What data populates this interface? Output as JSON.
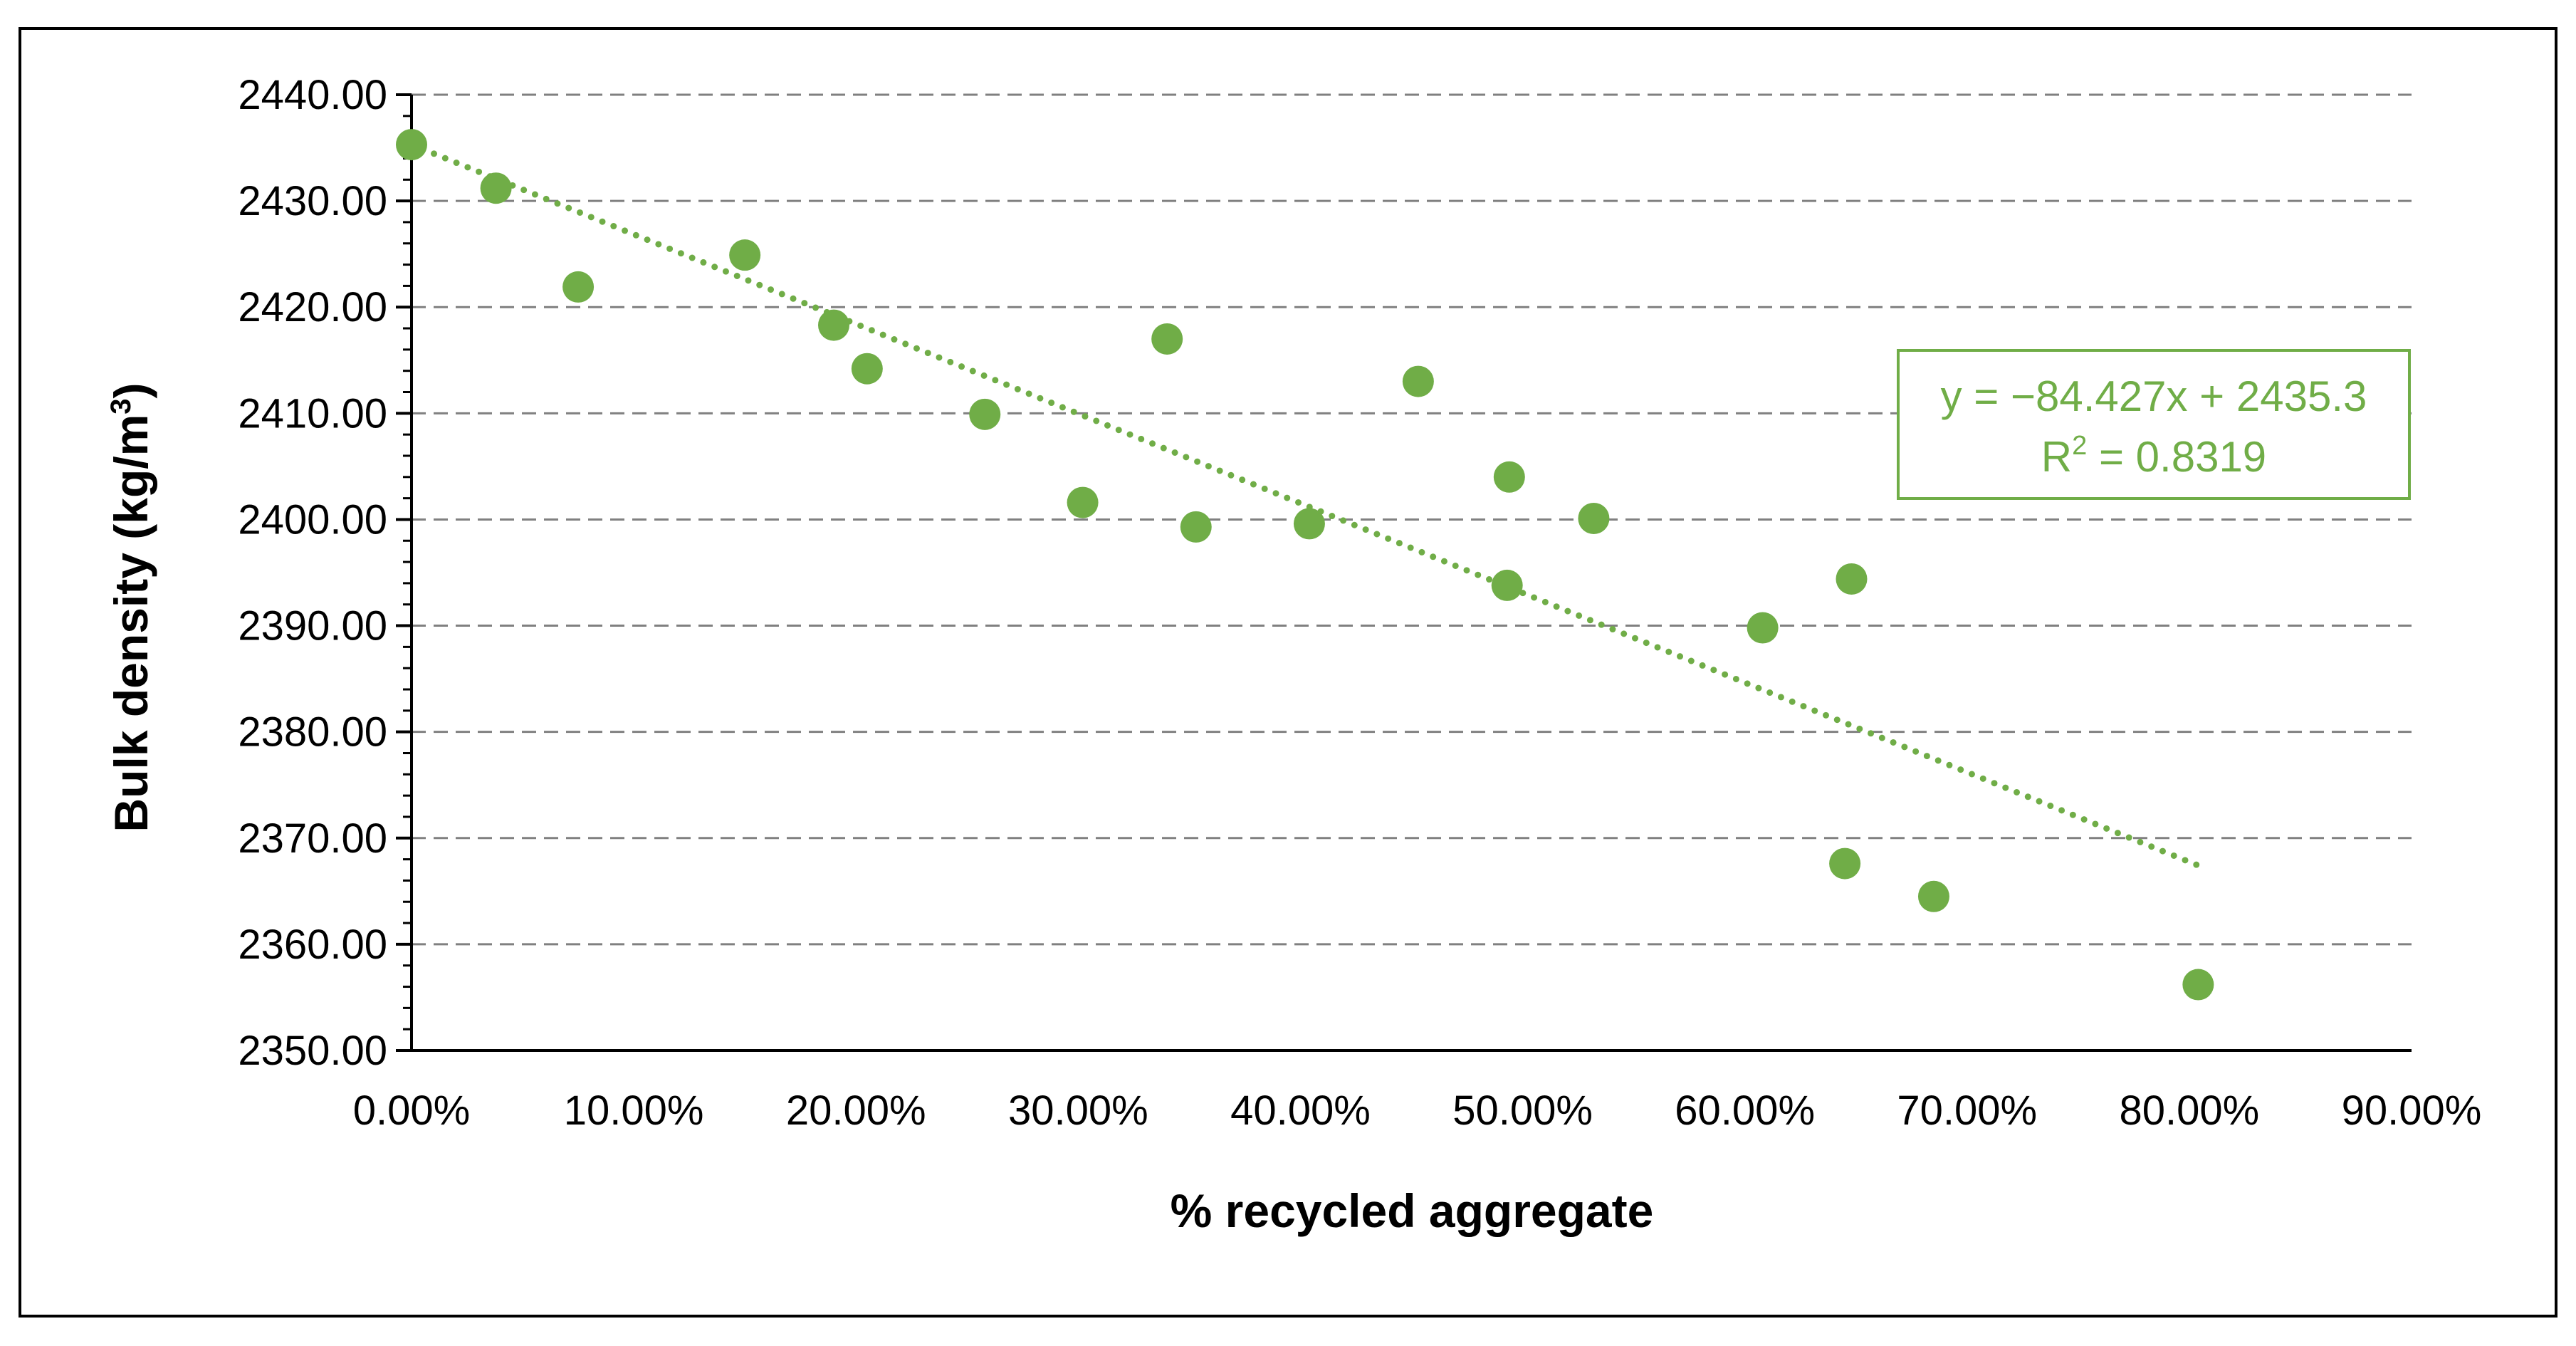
{
  "colors": {
    "marker": "#70ad47",
    "trendline": "#70ad47",
    "gridline": "#808080",
    "axis": "#000000",
    "frame": "#000000"
  },
  "chart_data": {
    "type": "scatter",
    "title": "",
    "xlabel": "% recycled aggregate",
    "ylabel_main": "Bulk density (kg/m",
    "ylabel_sup": "3",
    "ylabel_close": ")",
    "xlim": [
      0,
      0.9
    ],
    "ylim": [
      2350,
      2440
    ],
    "x_ticks": [
      0,
      0.1,
      0.2,
      0.3,
      0.4,
      0.5,
      0.6,
      0.7,
      0.8,
      0.9
    ],
    "x_tick_labels": [
      "0.00%",
      "10.00%",
      "20.00%",
      "30.00%",
      "40.00%",
      "50.00%",
      "60.00%",
      "70.00%",
      "80.00%",
      "90.00%"
    ],
    "y_ticks": [
      2350,
      2360,
      2370,
      2380,
      2390,
      2400,
      2410,
      2420,
      2430,
      2440
    ],
    "y_tick_labels": [
      "2350.00",
      "2360.00",
      "2370.00",
      "2380.00",
      "2390.00",
      "2400.00",
      "2410.00",
      "2420.00",
      "2430.00",
      "2440.00"
    ],
    "grid": "horizontal-dashed",
    "series": [
      {
        "name": "Bulk density",
        "points": [
          {
            "x": 0.0,
            "y": 2435.3
          },
          {
            "x": 0.038,
            "y": 2431.2
          },
          {
            "x": 0.075,
            "y": 2421.9
          },
          {
            "x": 0.15,
            "y": 2424.9
          },
          {
            "x": 0.19,
            "y": 2418.3
          },
          {
            "x": 0.205,
            "y": 2414.2
          },
          {
            "x": 0.258,
            "y": 2409.9
          },
          {
            "x": 0.302,
            "y": 2401.6
          },
          {
            "x": 0.34,
            "y": 2417.0
          },
          {
            "x": 0.353,
            "y": 2399.3
          },
          {
            "x": 0.404,
            "y": 2399.6
          },
          {
            "x": 0.453,
            "y": 2413.0
          },
          {
            "x": 0.493,
            "y": 2393.8
          },
          {
            "x": 0.494,
            "y": 2404.0
          },
          {
            "x": 0.532,
            "y": 2400.1
          },
          {
            "x": 0.608,
            "y": 2389.8
          },
          {
            "x": 0.645,
            "y": 2367.6
          },
          {
            "x": 0.648,
            "y": 2394.4
          },
          {
            "x": 0.685,
            "y": 2364.5
          },
          {
            "x": 0.804,
            "y": 2356.2
          }
        ]
      }
    ],
    "trendline": {
      "type": "linear",
      "slope": -84.427,
      "intercept": 2435.3,
      "x_start": 0.0,
      "x_end": 0.804,
      "style": "dotted"
    },
    "annotation": {
      "equation": "y = −84.427x + 2435.3",
      "r2_label": "R",
      "r2_sup": "2",
      "r2_value": " = 0.8319",
      "position": "top-right"
    }
  }
}
